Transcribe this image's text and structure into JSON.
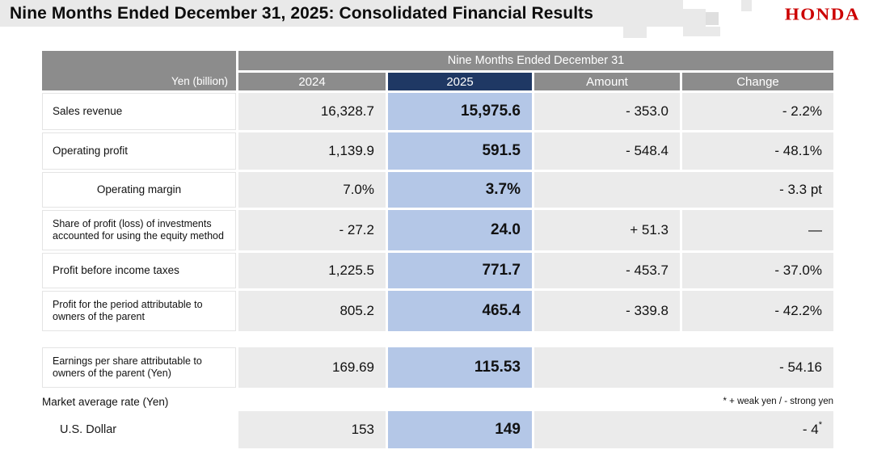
{
  "title": "Nine Months Ended December 31, 2025: Consolidated Financial Results",
  "logo": {
    "text": "HONDA"
  },
  "colors": {
    "honda_red": "#cc0000",
    "header_gray": "#8c8c8c",
    "accent_navy": "#1f3864",
    "highlight_blue": "#b4c7e7",
    "cell_gray": "#ebebeb",
    "title_bar_gray": "#e9e9e9"
  },
  "table": {
    "unit_label": "Yen (billion)",
    "span_header": "Nine Months Ended December 31",
    "columns": [
      "2024",
      "2025",
      "Amount",
      "Change"
    ],
    "rows": [
      {
        "label": "Sales revenue",
        "y2024": "16,328.7",
        "y2025": "15,975.6",
        "amount": "- 353.0",
        "change": "- 2.2%"
      },
      {
        "label": "Operating profit",
        "y2024": "1,139.9",
        "y2025": "591.5",
        "amount": "- 548.4",
        "change": "- 48.1%"
      },
      {
        "label": "Operating margin",
        "y2024": "7.0%",
        "y2025": "3.7%",
        "change": "- 3.3 pt"
      },
      {
        "label": "Share of profit (loss) of investments accounted for using the equity method",
        "y2024": "- 27.2",
        "y2025": "24.0",
        "amount": "+ 51.3",
        "change": "—"
      },
      {
        "label": "Profit before income taxes",
        "y2024": "1,225.5",
        "y2025": "771.7",
        "amount": "- 453.7",
        "change": "- 37.0%"
      },
      {
        "label": "Profit for the period attributable to owners of the parent",
        "y2024": "805.2",
        "y2025": "465.4",
        "amount": "- 339.8",
        "change": "- 42.2%"
      }
    ],
    "eps_row": {
      "label": "Earnings per share attributable to owners of the parent (Yen)",
      "y2024": "169.69",
      "y2025": "115.53",
      "change": "- 54.16"
    },
    "market_rate_label": "Market average rate (Yen)",
    "footnote": "* + weak yen / - strong yen",
    "usd_row": {
      "label": "U.S. Dollar",
      "y2024": "153",
      "y2025": "149",
      "change": "- 4",
      "change_sup": "*"
    }
  }
}
